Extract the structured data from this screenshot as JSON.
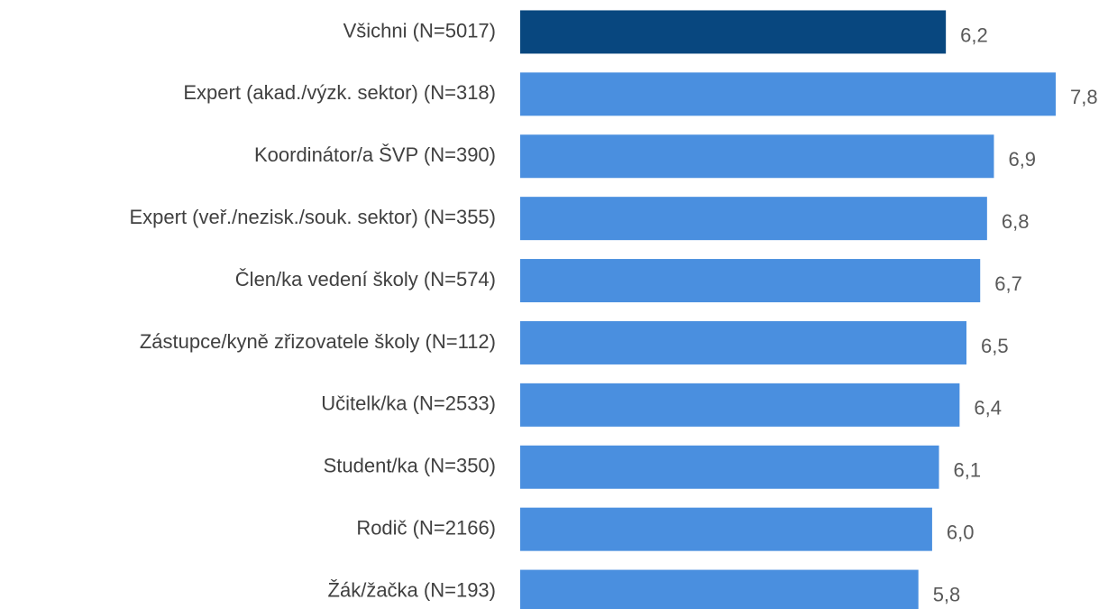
{
  "chart_data": {
    "type": "barh",
    "categories": [
      "Všichni (N=5017)",
      "Expert (akad./výzk. sektor) (N=318)",
      "Koordinátor/a ŠVP (N=390)",
      "Expert (veř./nezisk./souk. sektor) (N=355)",
      "Člen/ka vedení školy (N=574)",
      "Zástupce/kyně zřizovatele školy (N=112)",
      "Učitelk/ka (N=2533)",
      "Student/ka (N=350)",
      "Rodič (N=2166)",
      "Žák/žačka (N=193)"
    ],
    "values": [
      6.2,
      7.8,
      6.9,
      6.8,
      6.7,
      6.5,
      6.4,
      6.1,
      6.0,
      5.8
    ],
    "value_labels": [
      "6,2",
      "7,8",
      "6,9",
      "6,8",
      "6,7",
      "6,5",
      "6,4",
      "6,1",
      "6,0",
      "5,8"
    ],
    "colors": [
      "#08477f",
      "#4a8fdf",
      "#4a8fdf",
      "#4a8fdf",
      "#4a8fdf",
      "#4a8fdf",
      "#4a8fdf",
      "#4a8fdf",
      "#4a8fdf",
      "#4a8fdf"
    ]
  }
}
